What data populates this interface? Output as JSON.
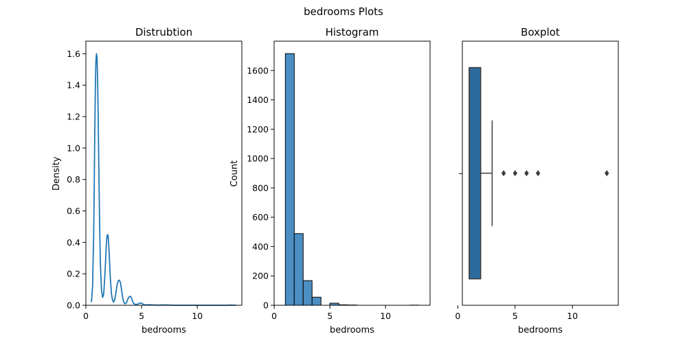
{
  "figure": {
    "suptitle": "bedrooms Plots"
  },
  "chart_data": [
    {
      "type": "line",
      "title": "Distrubtion",
      "xlabel": "bedrooms",
      "ylabel": "Density",
      "xlim": [
        0,
        14
      ],
      "ylim": [
        0,
        1.68
      ],
      "xticks": [
        0,
        5,
        10
      ],
      "yticks": [
        0.0,
        0.2,
        0.4,
        0.6,
        0.8,
        1.0,
        1.2,
        1.4,
        1.6
      ],
      "ytick_labels": [
        "0.0",
        "0.2",
        "0.4",
        "0.6",
        "0.8",
        "1.0",
        "1.2",
        "1.4",
        "1.6"
      ],
      "grid": false,
      "color": "#1f77b4",
      "series": [
        {
          "x": [
            0.5,
            0.6,
            0.7,
            0.75,
            0.8,
            0.85,
            0.9,
            0.95,
            1.0,
            1.05,
            1.1,
            1.15,
            1.2,
            1.25,
            1.3,
            1.4,
            1.5,
            1.6,
            1.7,
            1.8,
            1.85,
            1.9,
            1.95,
            2.0,
            2.05,
            2.1,
            2.15,
            2.2,
            2.3,
            2.4,
            2.5,
            2.6,
            2.7,
            2.8,
            2.9,
            3.0,
            3.1,
            3.2,
            3.3,
            3.4,
            3.5,
            3.6,
            3.7,
            3.8,
            3.9,
            4.0,
            4.1,
            4.2,
            4.3,
            4.5,
            4.7,
            4.8,
            4.9,
            5.0,
            5.1,
            5.2,
            5.4,
            5.7,
            6.0,
            6.5,
            7.0,
            7.5,
            8.0,
            9.0,
            10.0,
            11.0,
            12.0,
            12.5,
            13.0,
            13.5
          ],
          "y": [
            0.02,
            0.12,
            0.45,
            0.75,
            1.1,
            1.38,
            1.55,
            1.6,
            1.58,
            1.45,
            1.22,
            0.95,
            0.68,
            0.45,
            0.27,
            0.1,
            0.05,
            0.07,
            0.18,
            0.33,
            0.4,
            0.44,
            0.45,
            0.44,
            0.39,
            0.32,
            0.24,
            0.17,
            0.07,
            0.03,
            0.02,
            0.04,
            0.08,
            0.13,
            0.155,
            0.16,
            0.145,
            0.1,
            0.05,
            0.02,
            0.01,
            0.012,
            0.025,
            0.045,
            0.055,
            0.057,
            0.045,
            0.025,
            0.01,
            0.005,
            0.008,
            0.012,
            0.015,
            0.013,
            0.009,
            0.004,
            0.002,
            0.003,
            0.002,
            0.001,
            0.002,
            0.001,
            0.0,
            0.0,
            0.0,
            0.0,
            0.0,
            0.0,
            0.001,
            0.0
          ]
        }
      ]
    },
    {
      "type": "bar",
      "title": "Histogram",
      "xlabel": "bedrooms",
      "ylabel": "Count",
      "xlim": [
        -0.01,
        14.0
      ],
      "ylim": [
        0,
        1800
      ],
      "xticks": [
        0,
        5,
        10
      ],
      "yticks": [
        0,
        200,
        400,
        600,
        800,
        1000,
        1200,
        1400,
        1600
      ],
      "grid": false,
      "bar_color": "#4c8fc2",
      "edge_color": "#000000",
      "bins": [
        {
          "x0": 1.0,
          "x1": 1.8,
          "count": 1715
        },
        {
          "x0": 1.8,
          "x1": 2.6,
          "count": 488
        },
        {
          "x0": 2.6,
          "x1": 3.4,
          "count": 168
        },
        {
          "x0": 3.4,
          "x1": 4.2,
          "count": 55
        },
        {
          "x0": 4.2,
          "x1": 5.0,
          "count": 0
        },
        {
          "x0": 5.0,
          "x1": 5.8,
          "count": 14
        },
        {
          "x0": 5.8,
          "x1": 6.6,
          "count": 3
        },
        {
          "x0": 6.6,
          "x1": 7.4,
          "count": 2
        },
        {
          "x0": 7.4,
          "x1": 8.2,
          "count": 0
        },
        {
          "x0": 8.2,
          "x1": 9.0,
          "count": 0
        },
        {
          "x0": 9.0,
          "x1": 9.8,
          "count": 0
        },
        {
          "x0": 9.8,
          "x1": 10.6,
          "count": 0
        },
        {
          "x0": 10.6,
          "x1": 11.4,
          "count": 0
        },
        {
          "x0": 11.4,
          "x1": 12.2,
          "count": 0
        },
        {
          "x0": 12.2,
          "x1": 13.0,
          "count": 1
        }
      ]
    },
    {
      "type": "box",
      "title": "Boxplot",
      "xlabel": "bedrooms",
      "ylabel": "",
      "xlim": [
        0.4,
        14.0
      ],
      "xticks": [
        0,
        5,
        10
      ],
      "grid": false,
      "box_color": "#2d6a9e",
      "line_color": "#3b3b3b",
      "stats": {
        "min": 1,
        "q1": 1,
        "median": 1,
        "q3": 2,
        "max": 3
      },
      "outliers": [
        4,
        5,
        6,
        7,
        13
      ]
    }
  ]
}
